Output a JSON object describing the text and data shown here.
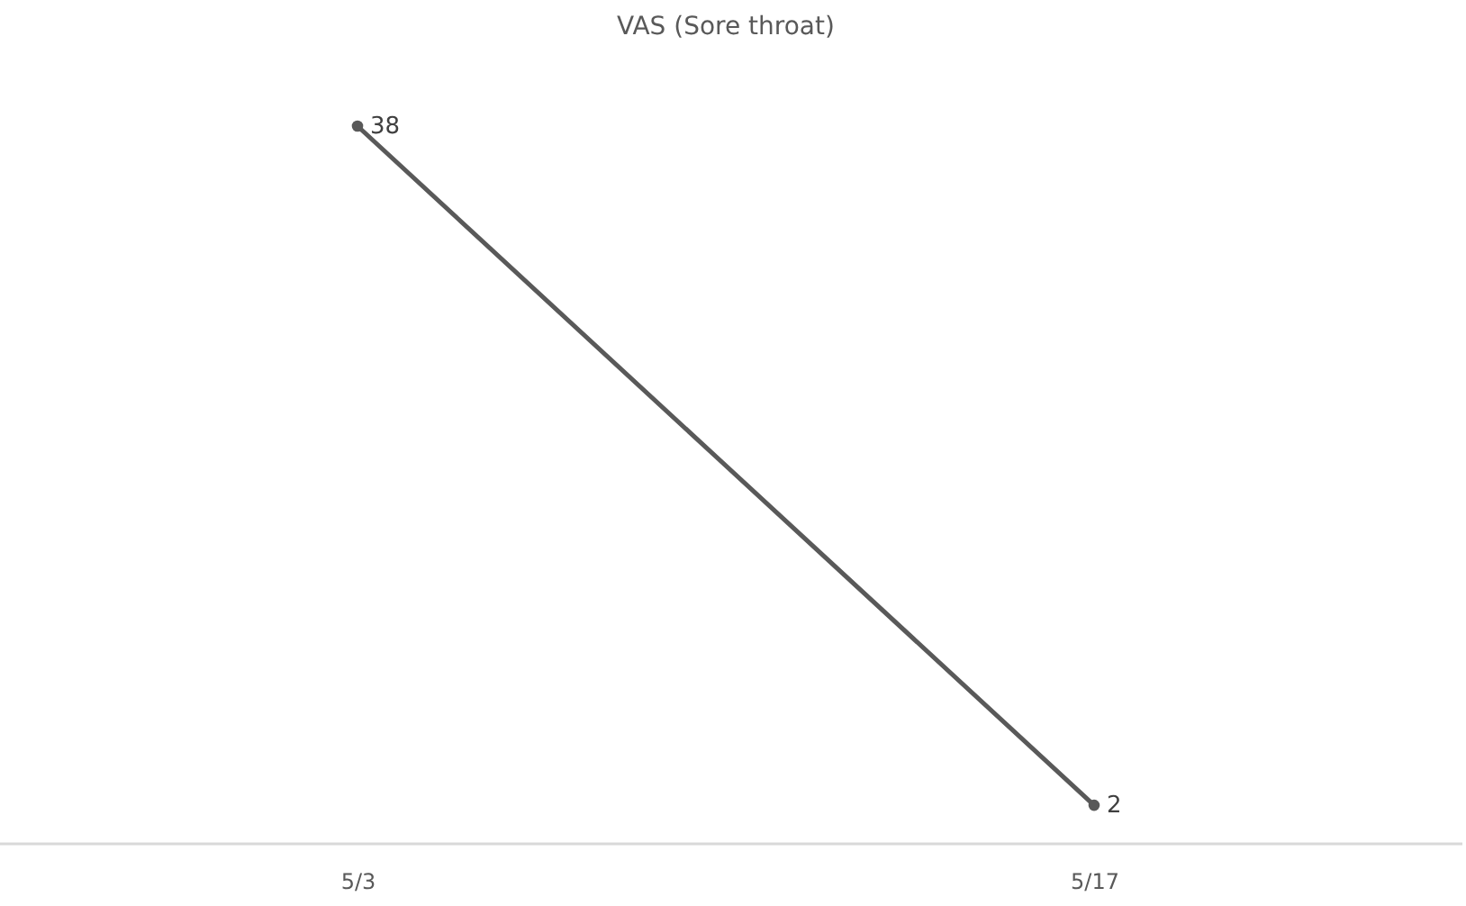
{
  "chart_data": {
    "type": "line",
    "title": "VAS (Sore throat)",
    "categories": [
      "5/3",
      "5/17"
    ],
    "series": [
      {
        "color": "#595959",
        "values": [
          38,
          2
        ]
      }
    ],
    "data_labels": true,
    "marker": "circle",
    "line_style": "solid"
  }
}
